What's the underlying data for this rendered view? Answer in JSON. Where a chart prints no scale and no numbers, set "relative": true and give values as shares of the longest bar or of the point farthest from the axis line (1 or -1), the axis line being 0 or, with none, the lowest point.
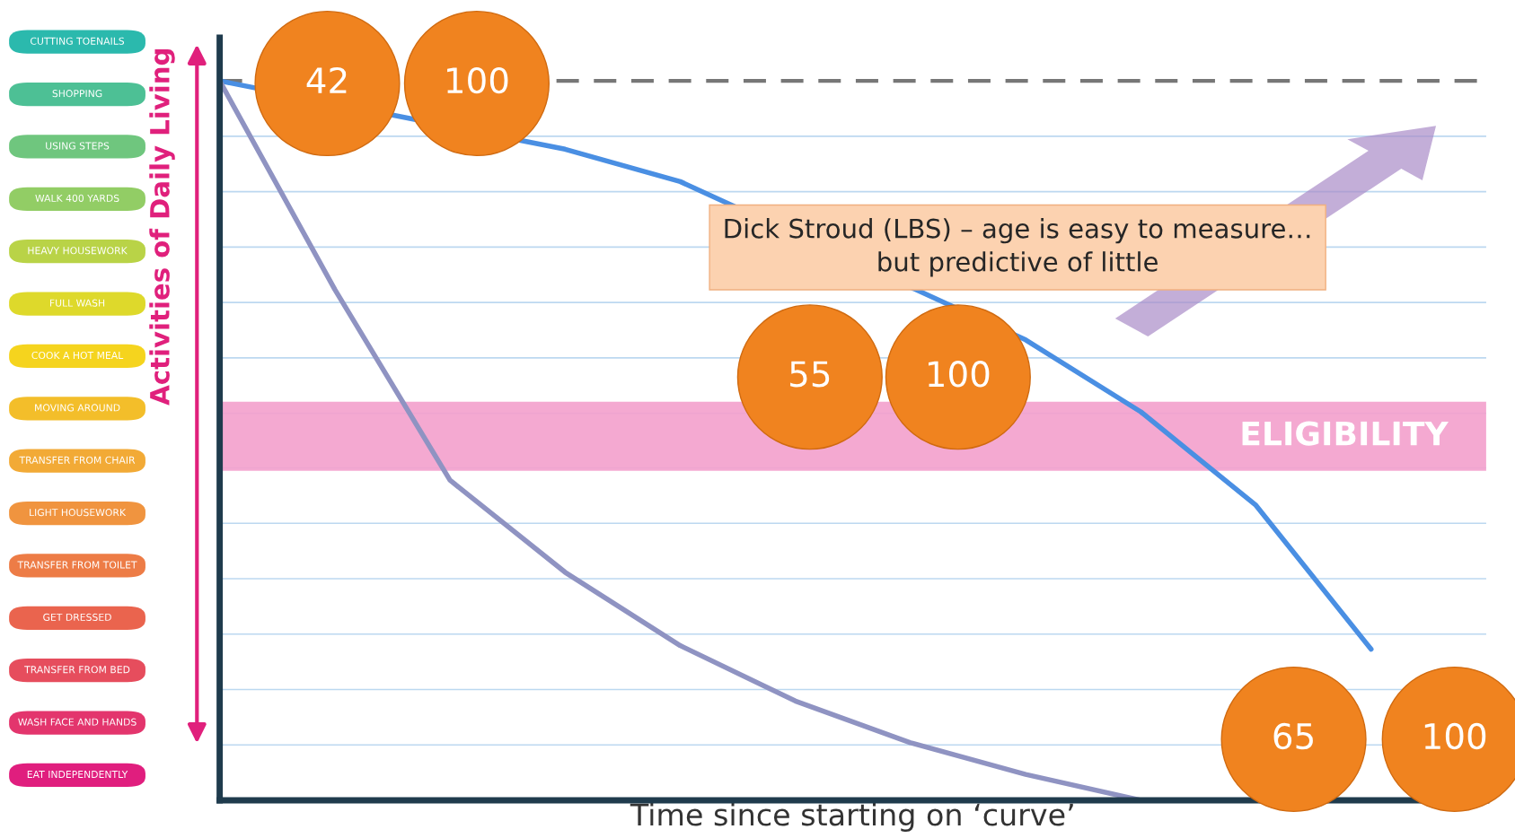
{
  "chart_data": {
    "type": "line",
    "relative": true,
    "xlabel": "Time since starting on ‘curve’",
    "ylabel": "Activities of Daily Living",
    "categories": [
      null,
      null,
      null,
      null,
      null,
      null,
      null,
      null,
      null,
      null,
      null,
      null
    ],
    "series": [
      {
        "color": "#4a8fe3",
        "values": [
          1,
          null,
          null,
          0.905,
          0.86,
          null,
          null,
          0.64,
          0.54,
          0.41,
          0.21,
          null
        ]
      },
      {
        "color": "#8f93c2",
        "values": [
          1,
          0.71,
          0.445,
          0.317,
          0.215,
          0.138,
          0.08,
          0.036,
          0,
          null,
          null,
          null
        ]
      }
    ],
    "ref_lines": [
      {
        "axis": "y",
        "value": 1,
        "color": "#777777",
        "line_style": "dashed"
      },
      {
        "axis": "y",
        "value": 0.077,
        "color": "#bcd8f0"
      },
      {
        "axis": "y",
        "value": 0.154,
        "color": "#bcd8f0"
      },
      {
        "axis": "y",
        "value": 0.231,
        "color": "#bcd8f0"
      },
      {
        "axis": "y",
        "value": 0.308,
        "color": "#bcd8f0"
      },
      {
        "axis": "y",
        "value": 0.385,
        "color": "#bcd8f0"
      },
      {
        "axis": "y",
        "value": 0.462,
        "color": "#bcd8f0"
      },
      {
        "axis": "y",
        "value": 0.538,
        "color": "#bcd8f0"
      },
      {
        "axis": "y",
        "value": 0.615,
        "color": "#bcd8f0"
      },
      {
        "axis": "y",
        "value": 0.692,
        "color": "#bcd8f0"
      },
      {
        "axis": "y",
        "value": 0.769,
        "color": "#bcd8f0"
      },
      {
        "axis": "y",
        "value": 0.846,
        "color": "#bcd8f0"
      },
      {
        "axis": "y",
        "value": 0.923,
        "color": "#bcd8f0"
      }
    ],
    "bands": [
      {
        "axis": "y",
        "from": 0.458,
        "to": 0.554,
        "label": "ELIGIBILITY",
        "color": "#f3a0cc"
      }
    ],
    "annotations": [
      "Dick Stroud (LBS) – age is easy to measure…\nbut predictive of little",
      "42",
      "100",
      "55",
      "100",
      "65",
      "100",
      "CUTTING TOENAILS",
      "SHOPPING",
      "USING STEPS",
      "WALK 400 YARDS",
      "HEAVY HOUSEWORK",
      "FULL WASH",
      "COOK A HOT MEAL",
      "MOVING AROUND",
      "TRANSFER FROM CHAIR",
      "LIGHT HOUSEWORK",
      "TRANSFER FROM TOILET",
      "GET DRESSED",
      "TRANSFER FROM BED",
      "WASH FACE AND HANDS",
      "EAT INDEPENDENTLY"
    ]
  }
}
